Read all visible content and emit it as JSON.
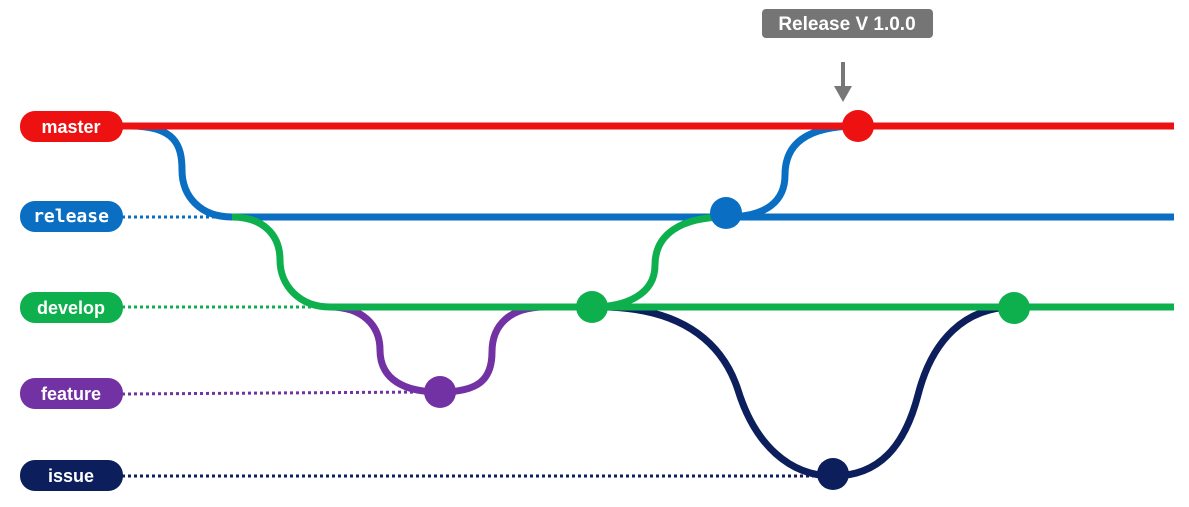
{
  "branches": [
    {
      "id": "master",
      "label": "master",
      "color": "#ee1111"
    },
    {
      "id": "release",
      "label": "release",
      "color": "#0a6fc2"
    },
    {
      "id": "develop",
      "label": "develop",
      "color": "#0eb04e"
    },
    {
      "id": "feature",
      "label": "feature",
      "color": "#7232a3"
    },
    {
      "id": "issue",
      "label": "issue",
      "color": "#0c1f5c"
    }
  ],
  "release_tag": {
    "text": "Release V 1.0.0",
    "color": "#757575"
  },
  "colors": {
    "background": "#ffffff",
    "arrow": "#777777"
  }
}
